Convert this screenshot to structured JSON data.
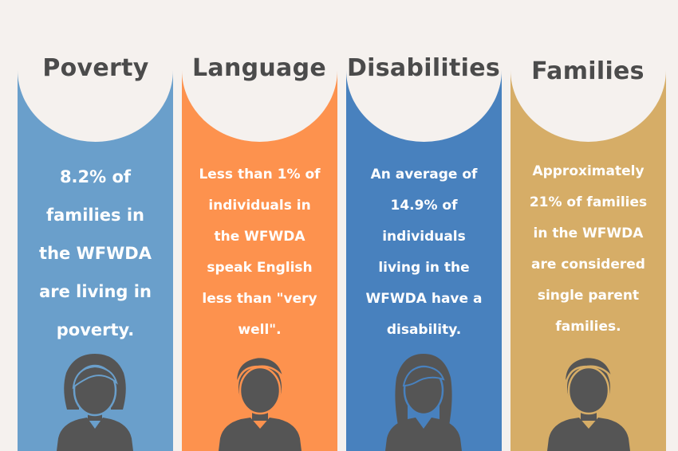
{
  "colors": {
    "background": "#f5f1ee",
    "poverty": "#6a9fcb",
    "language": "#fd924e",
    "disabilities": "#4881be",
    "families": "#d6ad67",
    "heading_text": "#4b4b4b",
    "silhouette": "#555555"
  },
  "columns": [
    {
      "heading": "Poverty",
      "lines": [
        "8.2% of",
        "families in",
        "the WFWDA",
        "are living in",
        "poverty."
      ],
      "icon": "woman-short-hair-icon"
    },
    {
      "heading": "Language",
      "lines": [
        "Less than 1% of",
        "individuals in",
        "the WFWDA",
        "speak English",
        "less than \"very",
        "well\"."
      ],
      "icon": "man-icon"
    },
    {
      "heading": "Disabilities",
      "lines": [
        "An average of",
        "14.9% of",
        "individuals",
        "living in the",
        "WFWDA have a",
        "disability."
      ],
      "icon": "woman-long-hair-icon"
    },
    {
      "heading": "Families",
      "lines": [
        "Approximately",
        "21% of families",
        "in the WFWDA",
        "are considered",
        "single parent",
        "families."
      ],
      "icon": "man-icon"
    }
  ]
}
